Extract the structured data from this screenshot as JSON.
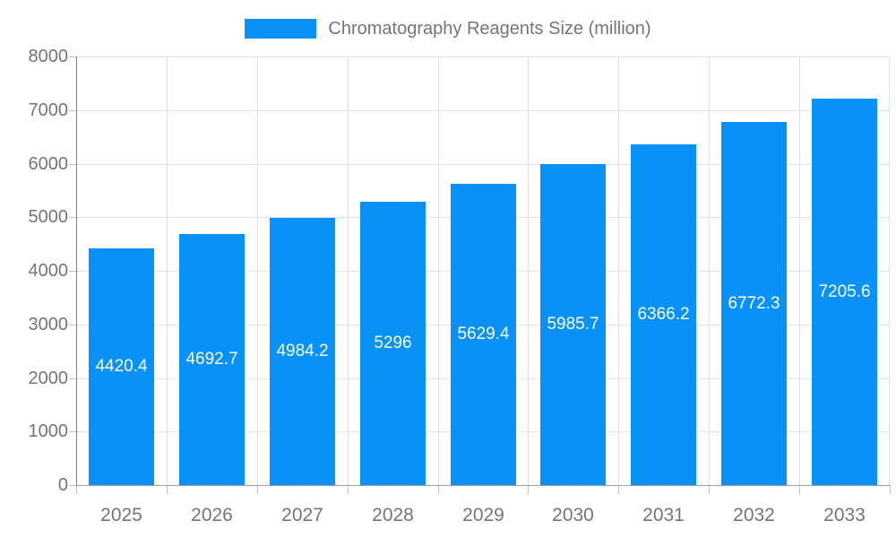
{
  "legend": {
    "position": "top-center"
  },
  "chart_data": {
    "type": "bar",
    "title": "Chromatography Reagents Size (million)",
    "categories": [
      "2025",
      "2026",
      "2027",
      "2028",
      "2029",
      "2030",
      "2031",
      "2032",
      "2033"
    ],
    "values": [
      4420.4,
      4692.7,
      4984.2,
      5296,
      5629.4,
      5985.7,
      6366.2,
      6772.3,
      7205.6
    ],
    "value_labels": [
      "4420.4",
      "4692.7",
      "4984.2",
      "5296",
      "5629.4",
      "5985.7",
      "6366.2",
      "6772.3",
      "7205.6"
    ],
    "xlabel": "",
    "ylabel": "",
    "ylim": [
      0,
      8000
    ],
    "y_ticks": [
      0,
      1000,
      2000,
      3000,
      4000,
      5000,
      6000,
      7000,
      8000
    ],
    "grid": true,
    "legend_position": "top-center"
  },
  "colors": {
    "bar": "#0892f8",
    "axis_text": "#757575",
    "grid": "#e2e2e2",
    "y_axis_line": "#7f7f7f",
    "x_axis_line": "#9e9e9e",
    "tick": "#bfbfbf",
    "value_label": "#ffffff",
    "background": "#ffffff"
  }
}
